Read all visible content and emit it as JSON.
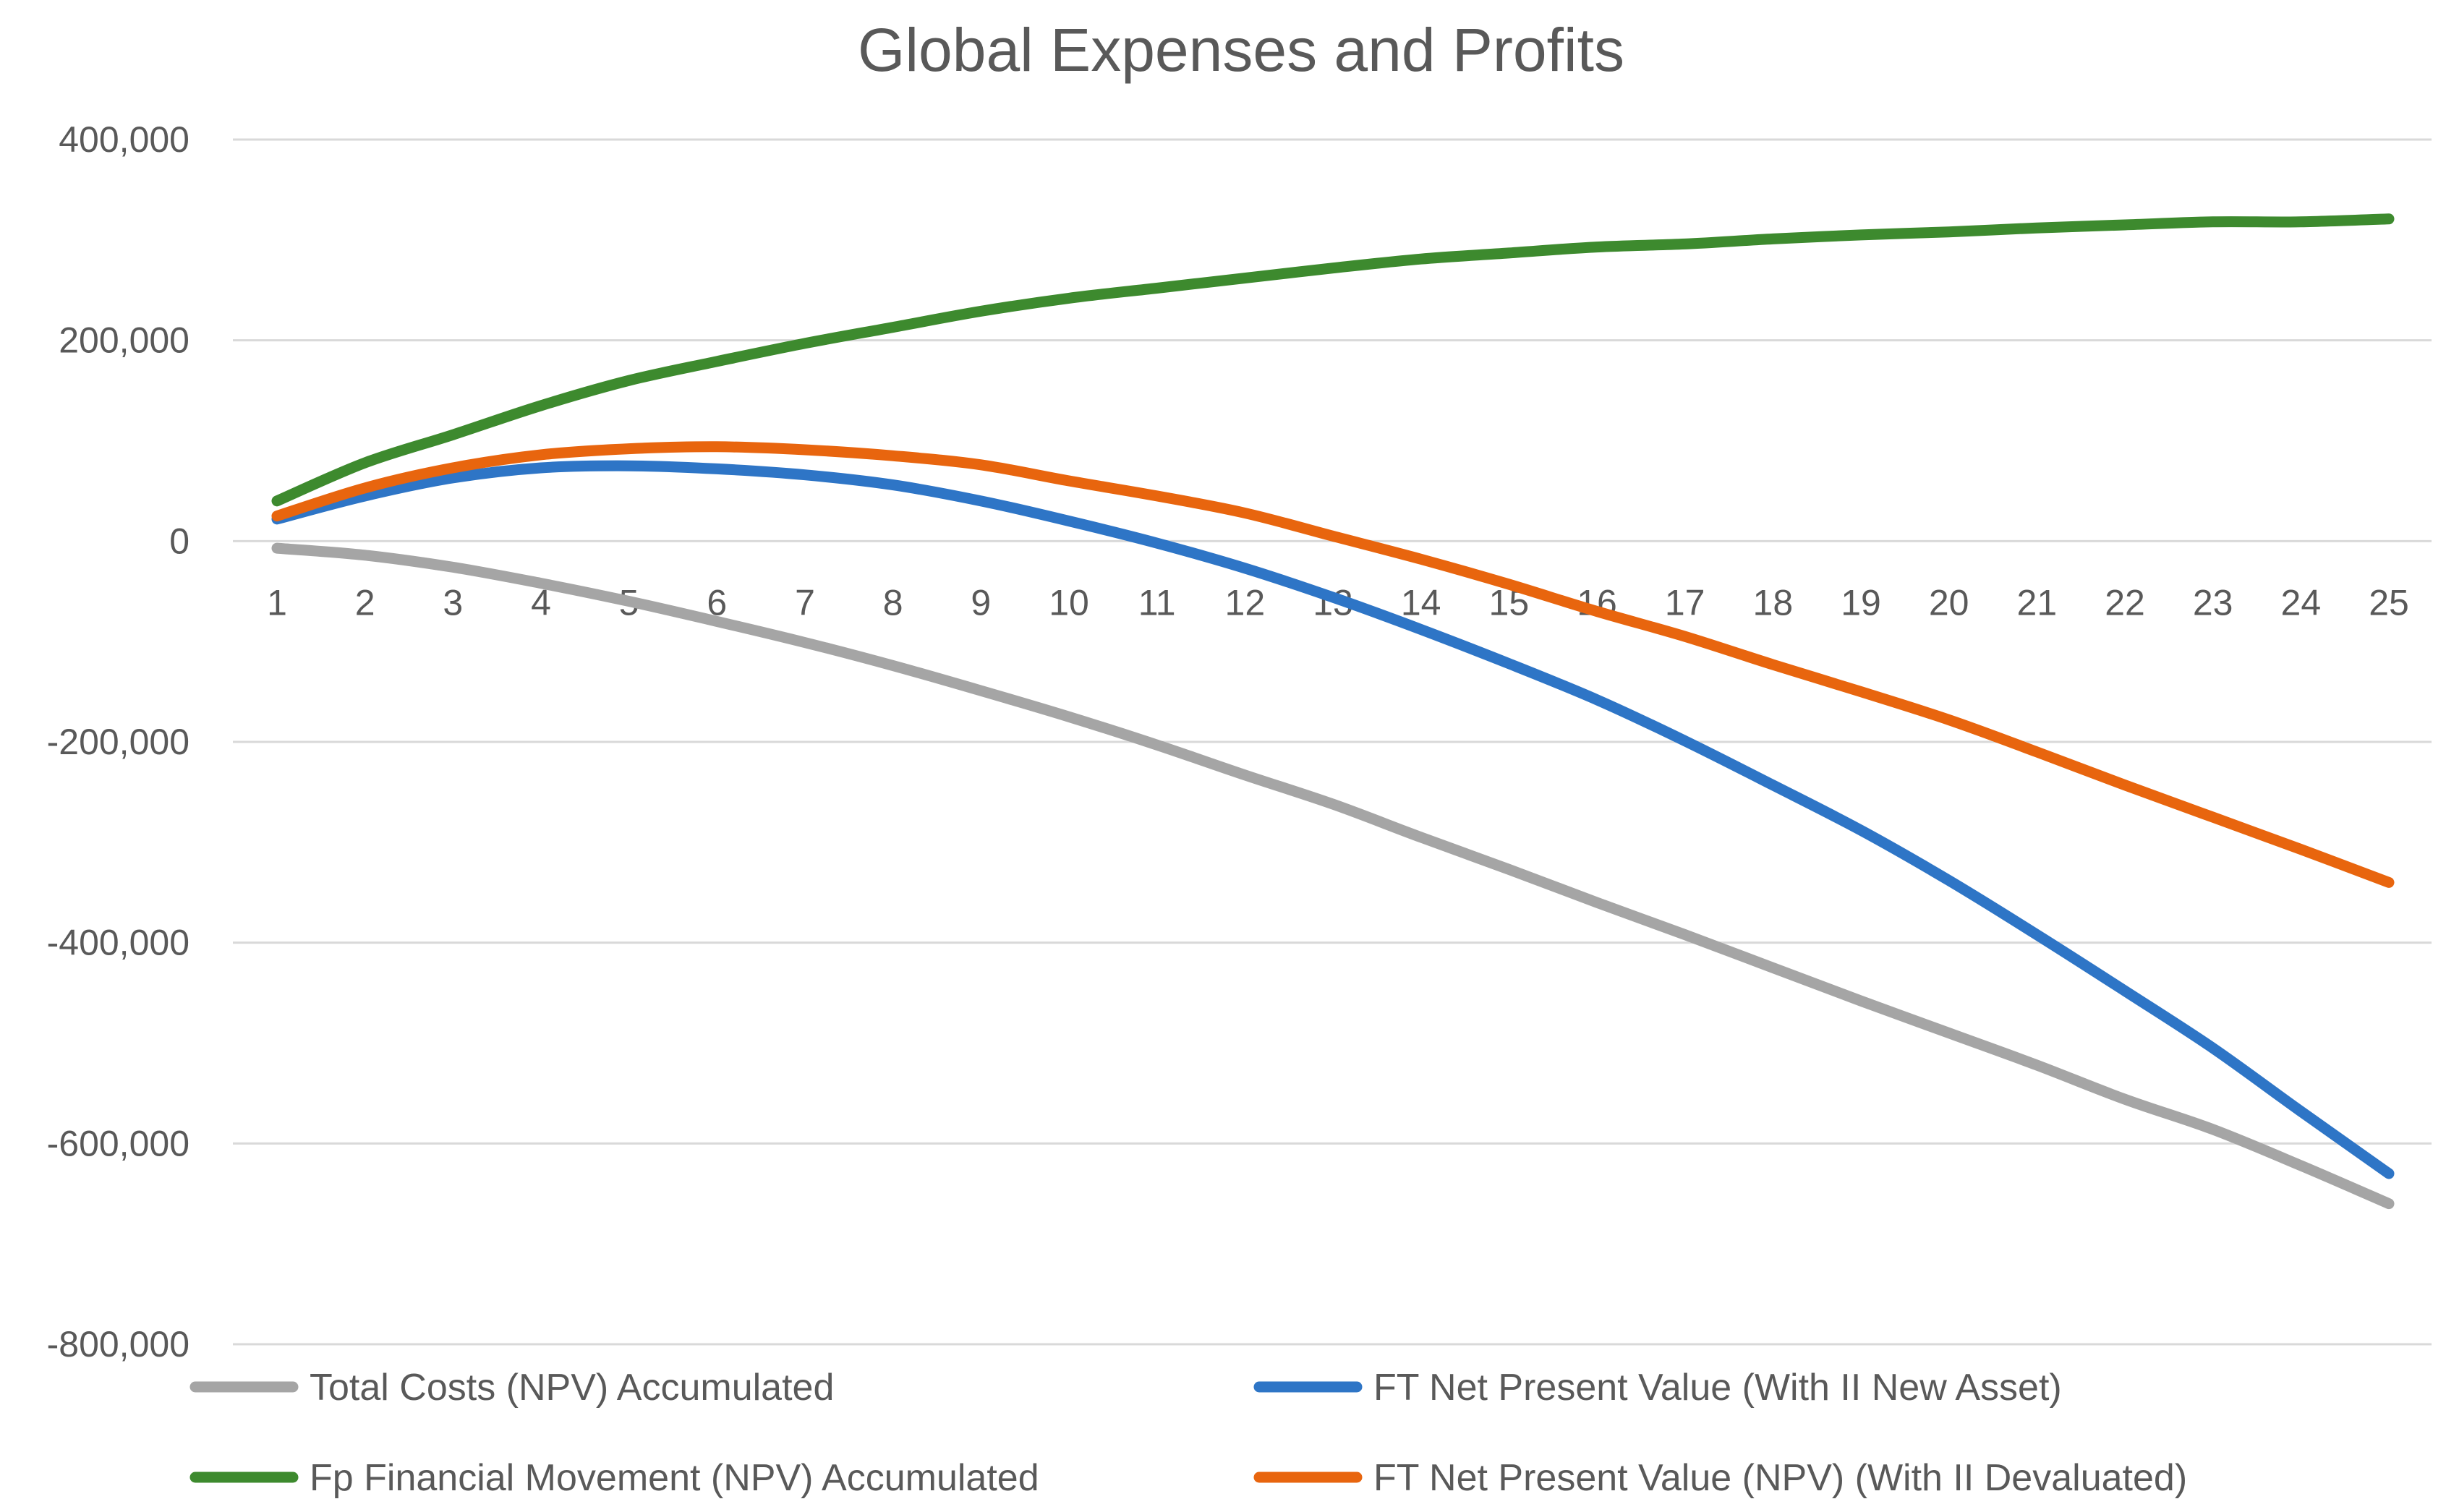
{
  "chart_data": {
    "type": "line",
    "title": "Global Expenses and Profits",
    "xlabel": "",
    "ylabel": "",
    "categories": [
      "1",
      "2",
      "3",
      "4",
      "5",
      "6",
      "7",
      "8",
      "9",
      "10",
      "11",
      "12",
      "13",
      "14",
      "15",
      "16",
      "17",
      "18",
      "19",
      "20",
      "21",
      "22",
      "23",
      "24",
      "25"
    ],
    "ylim": [
      -800000,
      400000
    ],
    "yticks": [
      400000,
      200000,
      0,
      -200000,
      -400000,
      -600000,
      -800000
    ],
    "ytick_labels": [
      "400,000",
      "200,000",
      "0",
      "-200,000",
      "-400,000",
      "-600,000",
      "-800,000"
    ],
    "grid": true,
    "legend_position": "bottom",
    "series": [
      {
        "name": "Total Costs (NPV) Accumulated",
        "color": "#a5a5a5",
        "values": [
          -7000,
          -14000,
          -26000,
          -42000,
          -60000,
          -80000,
          -101000,
          -124000,
          -149000,
          -175000,
          -203000,
          -233000,
          -262000,
          -295000,
          -327000,
          -360000,
          -392000,
          -425000,
          -458000,
          -490000,
          -522000,
          -556000,
          -586000,
          -622000,
          -660000
        ]
      },
      {
        "name": "FT Net Present Value (With II New Asset)",
        "color": "#2e75c6",
        "values": [
          22000,
          45000,
          63000,
          73000,
          75000,
          72000,
          66000,
          56000,
          40000,
          20000,
          -2000,
          -27000,
          -56000,
          -88000,
          -122000,
          -158000,
          -199000,
          -243000,
          -288000,
          -338000,
          -392000,
          -448000,
          -505000,
          -568000,
          -630000
        ]
      },
      {
        "name": "Fp Financial Movement (NPV) Accumulated",
        "color": "#3d8a2e",
        "values": [
          40000,
          78000,
          106000,
          135000,
          160000,
          179000,
          197000,
          213000,
          229000,
          242000,
          252000,
          262000,
          272000,
          281000,
          287000,
          293000,
          296000,
          301000,
          305000,
          308000,
          312000,
          315000,
          318000,
          318000,
          321000
        ]
      },
      {
        "name": "FT Net Present Value (NPV) (With II Devaluated)",
        "color": "#e8650e",
        "values": [
          25000,
          53000,
          73000,
          86000,
          92000,
          94000,
          91000,
          85000,
          76000,
          60000,
          45000,
          28000,
          5000,
          -18000,
          -43000,
          -70000,
          -95000,
          -123000,
          -150000,
          -178000,
          -210000,
          -243000,
          -275000,
          -307000,
          -340000
        ]
      }
    ]
  }
}
